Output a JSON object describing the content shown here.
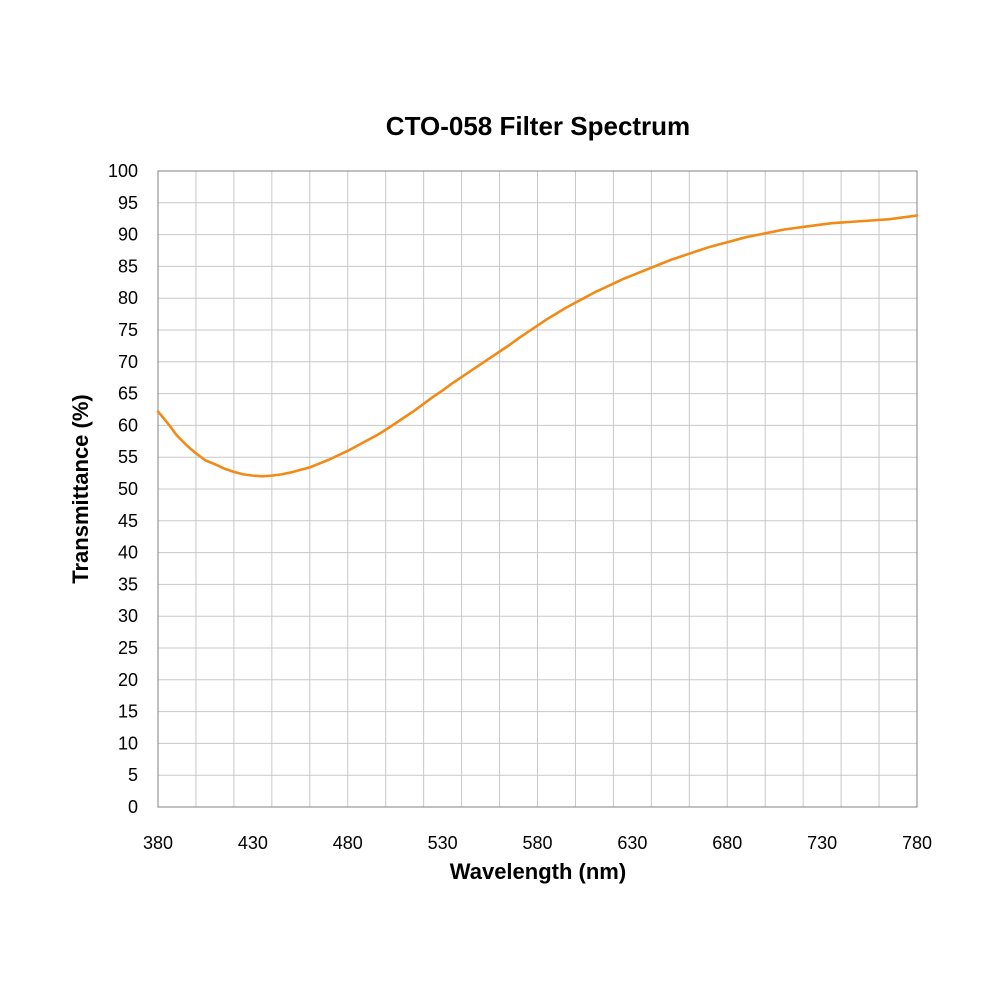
{
  "chart_data": {
    "type": "line",
    "title": "CTO-058 Filter Spectrum",
    "xlabel": "Wavelength (nm)",
    "ylabel": "Transmittance (%)",
    "xlim": [
      380,
      780
    ],
    "ylim": [
      0,
      100
    ],
    "x_major_ticks": [
      380,
      430,
      480,
      530,
      580,
      630,
      680,
      730,
      780
    ],
    "x_grid_step": 20,
    "y_ticks": [
      0,
      5,
      10,
      15,
      20,
      25,
      30,
      35,
      40,
      45,
      50,
      55,
      60,
      65,
      70,
      75,
      80,
      85,
      90,
      95,
      100
    ],
    "grid": true,
    "legend": "none",
    "series": [
      {
        "color": "#f28a17",
        "points": [
          [
            380,
            62.2
          ],
          [
            385,
            60.4
          ],
          [
            390,
            58.4
          ],
          [
            395,
            56.9
          ],
          [
            400,
            55.6
          ],
          [
            405,
            54.5
          ],
          [
            410,
            53.9
          ],
          [
            415,
            53.2
          ],
          [
            420,
            52.7
          ],
          [
            425,
            52.3
          ],
          [
            430,
            52.1
          ],
          [
            435,
            52.0
          ],
          [
            440,
            52.1
          ],
          [
            445,
            52.3
          ],
          [
            450,
            52.6
          ],
          [
            455,
            53.0
          ],
          [
            460,
            53.4
          ],
          [
            465,
            54.0
          ],
          [
            470,
            54.6
          ],
          [
            475,
            55.3
          ],
          [
            480,
            56.0
          ],
          [
            485,
            56.8
          ],
          [
            490,
            57.6
          ],
          [
            495,
            58.4
          ],
          [
            500,
            59.3
          ],
          [
            505,
            60.3
          ],
          [
            510,
            61.3
          ],
          [
            515,
            62.3
          ],
          [
            520,
            63.4
          ],
          [
            525,
            64.5
          ],
          [
            530,
            65.5
          ],
          [
            535,
            66.6
          ],
          [
            540,
            67.6
          ],
          [
            545,
            68.6
          ],
          [
            550,
            69.6
          ],
          [
            555,
            70.6
          ],
          [
            560,
            71.6
          ],
          [
            565,
            72.6
          ],
          [
            570,
            73.7
          ],
          [
            575,
            74.7
          ],
          [
            580,
            75.7
          ],
          [
            585,
            76.7
          ],
          [
            590,
            77.6
          ],
          [
            595,
            78.5
          ],
          [
            600,
            79.3
          ],
          [
            605,
            80.1
          ],
          [
            610,
            80.9
          ],
          [
            615,
            81.6
          ],
          [
            620,
            82.3
          ],
          [
            625,
            83.0
          ],
          [
            630,
            83.6
          ],
          [
            635,
            84.2
          ],
          [
            640,
            84.8
          ],
          [
            645,
            85.4
          ],
          [
            650,
            86.0
          ],
          [
            655,
            86.5
          ],
          [
            660,
            87.0
          ],
          [
            665,
            87.5
          ],
          [
            670,
            88.0
          ],
          [
            675,
            88.4
          ],
          [
            680,
            88.8
          ],
          [
            685,
            89.2
          ],
          [
            690,
            89.6
          ],
          [
            695,
            89.9
          ],
          [
            700,
            90.2
          ],
          [
            705,
            90.5
          ],
          [
            710,
            90.8
          ],
          [
            715,
            91.0
          ],
          [
            720,
            91.2
          ],
          [
            725,
            91.4
          ],
          [
            730,
            91.6
          ],
          [
            735,
            91.8
          ],
          [
            740,
            91.9
          ],
          [
            745,
            92.0
          ],
          [
            750,
            92.1
          ],
          [
            755,
            92.2
          ],
          [
            760,
            92.3
          ],
          [
            765,
            92.4
          ],
          [
            770,
            92.6
          ],
          [
            775,
            92.8
          ],
          [
            780,
            93.0
          ]
        ]
      }
    ]
  }
}
